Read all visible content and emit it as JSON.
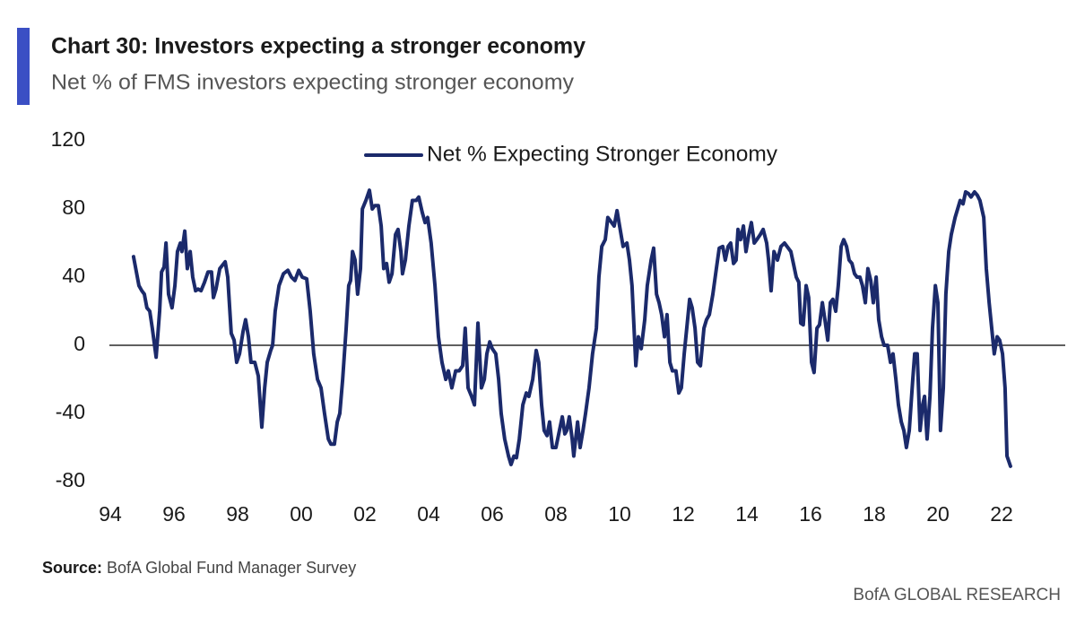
{
  "chart_data": {
    "type": "line",
    "title": "Chart 30: Investors expecting a stronger economy",
    "subtitle": "Net % of FMS investors expecting stronger economy",
    "source_label": "Source:",
    "source": "BofA Global Fund Manager Survey",
    "footer": "BofA GLOBAL RESEARCH",
    "legend": "top",
    "x": [
      1994.73,
      1994.9,
      1994.99,
      1995.07,
      1995.15,
      1995.24,
      1995.32,
      1995.44,
      1995.55,
      1995.61,
      1995.69,
      1995.75,
      1995.83,
      1995.94,
      1996.03,
      1996.11,
      1996.2,
      1996.25,
      1996.34,
      1996.42,
      1996.51,
      1996.59,
      1996.68,
      1996.76,
      1996.85,
      1996.96,
      1997.07,
      1997.18,
      1997.24,
      1997.32,
      1997.44,
      1997.61,
      1997.69,
      1997.8,
      1997.89,
      1997.97,
      1998.06,
      1998.17,
      1998.25,
      1998.34,
      1998.42,
      1998.54,
      1998.65,
      1998.76,
      1998.85,
      1998.93,
      1999.04,
      1999.1,
      1999.18,
      1999.3,
      1999.44,
      1999.58,
      1999.69,
      1999.8,
      1999.92,
      2000.03,
      2000.17,
      2000.28,
      2000.39,
      2000.51,
      2000.62,
      2000.73,
      2000.85,
      2000.93,
      2001.04,
      2001.13,
      2001.21,
      2001.3,
      2001.41,
      2001.49,
      2001.55,
      2001.61,
      2001.69,
      2001.77,
      2001.86,
      2001.92,
      2002.03,
      2002.14,
      2002.23,
      2002.31,
      2002.42,
      2002.51,
      2002.59,
      2002.68,
      2002.76,
      2002.85,
      2002.96,
      2003.04,
      2003.13,
      2003.18,
      2003.27,
      2003.38,
      2003.49,
      2003.61,
      2003.69,
      2003.8,
      2003.89,
      2003.97,
      2004.08,
      2004.2,
      2004.31,
      2004.42,
      2004.54,
      2004.62,
      2004.73,
      2004.85,
      2004.96,
      2005.07,
      2005.15,
      2005.24,
      2005.35,
      2005.44,
      2005.55,
      2005.66,
      2005.75,
      2005.83,
      2005.92,
      2006.0,
      2006.11,
      2006.2,
      2006.28,
      2006.39,
      2006.51,
      2006.59,
      2006.68,
      2006.76,
      2006.85,
      2006.96,
      2007.07,
      2007.15,
      2007.27,
      2007.38,
      2007.46,
      2007.55,
      2007.63,
      2007.72,
      2007.8,
      2007.89,
      2008.0,
      2008.11,
      2008.2,
      2008.28,
      2008.34,
      2008.42,
      2008.51,
      2008.56,
      2008.68,
      2008.76,
      2008.85,
      2008.93,
      2009.04,
      2009.15,
      2009.27,
      2009.35,
      2009.44,
      2009.55,
      2009.63,
      2009.75,
      2009.83,
      2009.92,
      2010.0,
      2010.11,
      2010.23,
      2010.31,
      2010.39,
      2010.51,
      2010.59,
      2010.68,
      2010.79,
      2010.87,
      2010.99,
      2011.07,
      2011.16,
      2011.24,
      2011.32,
      2011.41,
      2011.49,
      2011.58,
      2011.66,
      2011.77,
      2011.86,
      2011.94,
      2012.03,
      2012.11,
      2012.2,
      2012.28,
      2012.37,
      2012.45,
      2012.54,
      2012.65,
      2012.73,
      2012.82,
      2012.93,
      2013.04,
      2013.13,
      2013.24,
      2013.32,
      2013.41,
      2013.49,
      2013.58,
      2013.66,
      2013.72,
      2013.8,
      2013.89,
      2013.97,
      2014.06,
      2014.14,
      2014.23,
      2014.31,
      2014.42,
      2014.51,
      2014.62,
      2014.68,
      2014.76,
      2014.85,
      2014.96,
      2015.07,
      2015.18,
      2015.3,
      2015.38,
      2015.46,
      2015.55,
      2015.63,
      2015.69,
      2015.77,
      2015.86,
      2015.94,
      2016.03,
      2016.11,
      2016.2,
      2016.28,
      2016.37,
      2016.45,
      2016.54,
      2016.62,
      2016.7,
      2016.79,
      2016.87,
      2016.96,
      2017.04,
      2017.13,
      2017.21,
      2017.3,
      2017.38,
      2017.46,
      2017.55,
      2017.63,
      2017.72,
      2017.8,
      2017.89,
      2017.97,
      2018.06,
      2018.14,
      2018.23,
      2018.31,
      2018.42,
      2018.51,
      2018.59,
      2018.68,
      2018.76,
      2018.85,
      2018.93,
      2019.01,
      2019.1,
      2019.21,
      2019.27,
      2019.35,
      2019.44,
      2019.52,
      2019.58,
      2019.66,
      2019.75,
      2019.83,
      2019.92,
      2020.0,
      2020.08,
      2020.17,
      2020.25,
      2020.34,
      2020.42,
      2020.54,
      2020.62,
      2020.7,
      2020.79,
      2020.87,
      2020.96,
      2021.04,
      2021.15,
      2021.24,
      2021.32,
      2021.44,
      2021.52,
      2021.61,
      2021.69,
      2021.77,
      2021.86,
      2021.94,
      2022.03,
      2022.11,
      2022.17,
      2022.28
    ],
    "series": [
      {
        "name": "Net % Expecting Stronger Economy",
        "color": "#1b2a6b",
        "values": [
          52,
          35,
          32,
          30,
          22,
          20,
          10,
          -7,
          20,
          43,
          46,
          60,
          30,
          22,
          35,
          55,
          60,
          55,
          67,
          45,
          55,
          40,
          32,
          33,
          32,
          37,
          43,
          43,
          28,
          33,
          45,
          49,
          40,
          7,
          3,
          -10,
          -5,
          8,
          15,
          5,
          -10,
          -10,
          -18,
          -48,
          -25,
          -10,
          -3,
          0,
          20,
          35,
          42,
          44,
          40,
          38,
          44,
          40,
          39,
          20,
          -5,
          -20,
          -25,
          -40,
          -55,
          -58,
          -58,
          -45,
          -40,
          -20,
          10,
          35,
          38,
          55,
          50,
          30,
          45,
          80,
          85,
          91,
          80,
          82,
          82,
          70,
          45,
          48,
          37,
          42,
          65,
          68,
          55,
          42,
          50,
          70,
          85,
          85,
          87,
          78,
          72,
          75,
          60,
          35,
          5,
          -10,
          -20,
          -15,
          -25,
          -15,
          -15,
          -12,
          10,
          -25,
          -30,
          -35,
          13,
          -25,
          -20,
          -5,
          2,
          -2,
          -5,
          -20,
          -40,
          -55,
          -65,
          -70,
          -65,
          -66,
          -55,
          -35,
          -28,
          -30,
          -20,
          -3,
          -10,
          -35,
          -50,
          -53,
          -45,
          -60,
          -60,
          -50,
          -42,
          -52,
          -50,
          -42,
          -55,
          -65,
          -45,
          -60,
          -50,
          -40,
          -25,
          -5,
          10,
          40,
          58,
          62,
          75,
          72,
          70,
          79,
          70,
          58,
          60,
          50,
          35,
          -12,
          5,
          -2,
          15,
          35,
          50,
          57,
          30,
          25,
          18,
          5,
          18,
          -10,
          -15,
          -15,
          -28,
          -25,
          -5,
          10,
          27,
          22,
          10,
          -10,
          -12,
          10,
          15,
          18,
          30,
          45,
          57,
          58,
          50,
          58,
          60,
          48,
          50,
          68,
          62,
          70,
          55,
          65,
          72,
          60,
          62,
          65,
          68,
          60,
          50,
          32,
          55,
          50,
          58,
          60,
          57,
          55,
          48,
          40,
          37,
          13,
          12,
          35,
          28,
          -10,
          -16,
          10,
          12,
          25,
          15,
          3,
          25,
          27,
          20,
          35,
          58,
          62,
          58,
          50,
          48,
          42,
          40,
          40,
          35,
          25,
          45,
          38,
          25,
          40,
          15,
          5,
          0,
          0,
          -10,
          -5,
          -20,
          -35,
          -45,
          -50,
          -60,
          -50,
          -20,
          -5,
          -5,
          -50,
          -35,
          -30,
          -55,
          -30,
          10,
          35,
          25,
          -50,
          -25,
          30,
          55,
          65,
          75,
          80,
          85,
          83,
          90,
          89,
          87,
          90,
          88,
          85,
          75,
          45,
          25,
          10,
          -5,
          5,
          3,
          -5,
          -25,
          -65,
          -71
        ]
      }
    ],
    "xlim": [
      1994,
      2024
    ],
    "xticks": [
      {
        "value": 1994,
        "label": "94"
      },
      {
        "value": 1996,
        "label": "96"
      },
      {
        "value": 1998,
        "label": "98"
      },
      {
        "value": 2000,
        "label": "00"
      },
      {
        "value": 2002,
        "label": "02"
      },
      {
        "value": 2004,
        "label": "04"
      },
      {
        "value": 2006,
        "label": "06"
      },
      {
        "value": 2008,
        "label": "08"
      },
      {
        "value": 2010,
        "label": "10"
      },
      {
        "value": 2012,
        "label": "12"
      },
      {
        "value": 2014,
        "label": "14"
      },
      {
        "value": 2016,
        "label": "16"
      },
      {
        "value": 2018,
        "label": "18"
      },
      {
        "value": 2020,
        "label": "20"
      },
      {
        "value": 2022,
        "label": "22"
      }
    ],
    "ylim": [
      -80,
      120
    ],
    "yticks": [
      -80,
      -40,
      0,
      40,
      80,
      120
    ],
    "zero_line": true
  }
}
